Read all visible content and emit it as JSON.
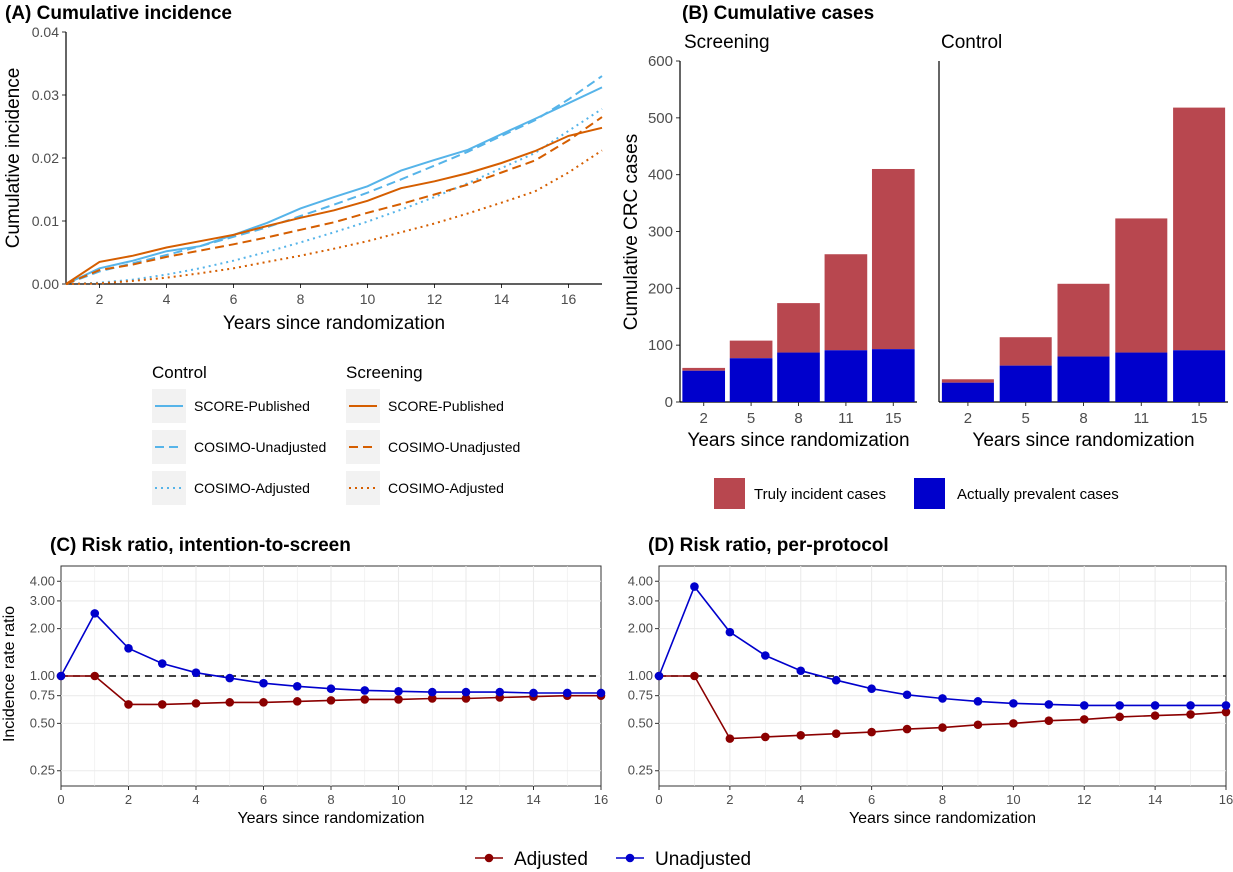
{
  "panels": {
    "a_title": "(A) Cumulative incidence",
    "b_title": "(B) Cumulative cases",
    "c_title": "(C) Risk ratio, intention-to-screen",
    "d_title": "(D) Risk ratio, per-protocol"
  },
  "legend_a": {
    "control_header": "Control",
    "screening_header": "Screening",
    "items": [
      "SCORE-Published",
      "COSIMO-Unadjusted",
      "COSIMO-Adjusted"
    ]
  },
  "legend_b": {
    "truly": "Truly incident cases",
    "prevalent": "Actually prevalent cases"
  },
  "legend_cd": {
    "adjusted": "Adjusted",
    "unadjusted": "Unadjusted"
  },
  "colors": {
    "control": "#56B4E9",
    "screening": "#D55E00",
    "truly_incident": "#B8474F",
    "prevalent": "#0000CC",
    "adjusted": "#8B0000",
    "unadjusted": "#0000CC",
    "panel_bg": "#EBEBEB"
  },
  "chart_data": [
    {
      "id": "A",
      "type": "line",
      "title": "(A) Cumulative incidence",
      "xlabel": "Years since randomization",
      "ylabel": "Cumulative incidence",
      "xlim": [
        1,
        17
      ],
      "ylim": [
        0,
        0.04
      ],
      "xticks": [
        2,
        4,
        6,
        8,
        10,
        12,
        14,
        16
      ],
      "yticks": [
        "0.00",
        "0.01",
        "0.02",
        "0.03",
        "0.04"
      ],
      "x": [
        1,
        2,
        3,
        4,
        5,
        6,
        7,
        8,
        9,
        10,
        11,
        12,
        13,
        14,
        15,
        16,
        17
      ],
      "series": [
        {
          "name": "SCORE-Published",
          "group": "Control",
          "linetype": "solid",
          "values": [
            0,
            0.0025,
            0.0037,
            0.0052,
            0.006,
            0.0078,
            0.0097,
            0.012,
            0.0138,
            0.0155,
            0.018,
            0.0197,
            0.0213,
            0.0238,
            0.0262,
            0.0287,
            0.0312
          ]
        },
        {
          "name": "COSIMO-Unadjusted",
          "group": "Control",
          "linetype": "dashed",
          "values": [
            0,
            0.002,
            0.0033,
            0.0046,
            0.006,
            0.0075,
            0.009,
            0.0108,
            0.0126,
            0.0145,
            0.0166,
            0.0188,
            0.021,
            0.0235,
            0.026,
            0.0293,
            0.033
          ]
        },
        {
          "name": "COSIMO-Adjusted",
          "group": "Control",
          "linetype": "dotted",
          "values": [
            0,
            0.0002,
            0.0007,
            0.0015,
            0.0025,
            0.0037,
            0.0051,
            0.0066,
            0.0082,
            0.0099,
            0.0118,
            0.0138,
            0.016,
            0.0184,
            0.0208,
            0.0243,
            0.0278
          ]
        },
        {
          "name": "SCORE-Published",
          "group": "Screening",
          "linetype": "solid",
          "values": [
            0,
            0.0035,
            0.0045,
            0.0058,
            0.0068,
            0.0078,
            0.0092,
            0.0105,
            0.0117,
            0.0132,
            0.0152,
            0.0163,
            0.0176,
            0.0192,
            0.0211,
            0.0235,
            0.0248
          ]
        },
        {
          "name": "COSIMO-Unadjusted",
          "group": "Screening",
          "linetype": "dashed",
          "values": [
            0,
            0.0022,
            0.0031,
            0.0043,
            0.0053,
            0.0063,
            0.0074,
            0.0086,
            0.0098,
            0.0113,
            0.0127,
            0.0142,
            0.0158,
            0.0177,
            0.0196,
            0.0228,
            0.0265
          ]
        },
        {
          "name": "COSIMO-Adjusted",
          "group": "Screening",
          "linetype": "dotted",
          "values": [
            0,
            0.0001,
            0.0005,
            0.001,
            0.0017,
            0.0025,
            0.0035,
            0.0045,
            0.0056,
            0.0068,
            0.0082,
            0.0096,
            0.0112,
            0.0129,
            0.0147,
            0.0177,
            0.0212
          ]
        }
      ]
    },
    {
      "id": "B",
      "type": "bar",
      "title": "(B) Cumulative cases",
      "ylabel": "Cumulative CRC cases",
      "xlabel": "Years since randomization",
      "ylim": [
        0,
        600
      ],
      "yticks": [
        0,
        100,
        200,
        300,
        400,
        500,
        600
      ],
      "categories": [
        "2",
        "5",
        "8",
        "11",
        "15"
      ],
      "facets": [
        {
          "name": "Screening",
          "totals": [
            60,
            108,
            174,
            260,
            410
          ],
          "prevalent": [
            55,
            77,
            87,
            91,
            93
          ]
        },
        {
          "name": "Control",
          "totals": [
            40,
            114,
            208,
            323,
            518
          ],
          "prevalent": [
            34,
            64,
            80,
            87,
            91
          ]
        }
      ],
      "series": [
        {
          "name": "Truly incident cases"
        },
        {
          "name": "Actually prevalent cases"
        }
      ]
    },
    {
      "id": "C",
      "type": "line",
      "title": "(C) Risk ratio, intention-to-screen",
      "ylabel": "Incidence rate ratio",
      "xlabel": "Years since randomization",
      "yscale": "log",
      "xlim": [
        0,
        16
      ],
      "ylim": [
        0.2,
        5
      ],
      "xticks": [
        0,
        2,
        4,
        6,
        8,
        10,
        12,
        14,
        16
      ],
      "yticks": [
        "0.25",
        "0.50",
        "0.75",
        "1.00",
        "2.00",
        "3.00",
        "4.00"
      ],
      "reference_line": 1,
      "x": [
        0,
        1,
        2,
        3,
        4,
        5,
        6,
        7,
        8,
        9,
        10,
        11,
        12,
        13,
        14,
        15,
        16
      ],
      "series": [
        {
          "name": "Adjusted",
          "values": [
            1,
            1,
            0.66,
            0.66,
            0.67,
            0.68,
            0.68,
            0.69,
            0.7,
            0.71,
            0.71,
            0.72,
            0.72,
            0.73,
            0.74,
            0.75,
            0.75
          ]
        },
        {
          "name": "Unadjusted",
          "values": [
            1,
            2.5,
            1.5,
            1.2,
            1.05,
            0.97,
            0.9,
            0.86,
            0.83,
            0.81,
            0.8,
            0.79,
            0.79,
            0.79,
            0.78,
            0.78,
            0.78
          ]
        }
      ]
    },
    {
      "id": "D",
      "type": "line",
      "title": "(D) Risk ratio, per-protocol",
      "xlabel": "Years since randomization",
      "yscale": "log",
      "xlim": [
        0,
        16
      ],
      "ylim": [
        0.2,
        5
      ],
      "xticks": [
        0,
        2,
        4,
        6,
        8,
        10,
        12,
        14,
        16
      ],
      "yticks": [
        "0.25",
        "0.50",
        "0.75",
        "1.00",
        "2.00",
        "3.00",
        "4.00"
      ],
      "reference_line": 1,
      "x": [
        0,
        1,
        2,
        3,
        4,
        5,
        6,
        7,
        8,
        9,
        10,
        11,
        12,
        13,
        14,
        15,
        16
      ],
      "series": [
        {
          "name": "Adjusted",
          "values": [
            1,
            1,
            0.4,
            0.41,
            0.42,
            0.43,
            0.44,
            0.46,
            0.47,
            0.49,
            0.5,
            0.52,
            0.53,
            0.55,
            0.56,
            0.57,
            0.59
          ]
        },
        {
          "name": "Unadjusted",
          "values": [
            1,
            3.7,
            1.9,
            1.35,
            1.08,
            0.94,
            0.83,
            0.76,
            0.72,
            0.69,
            0.67,
            0.66,
            0.65,
            0.65,
            0.65,
            0.65,
            0.65
          ]
        }
      ]
    }
  ]
}
